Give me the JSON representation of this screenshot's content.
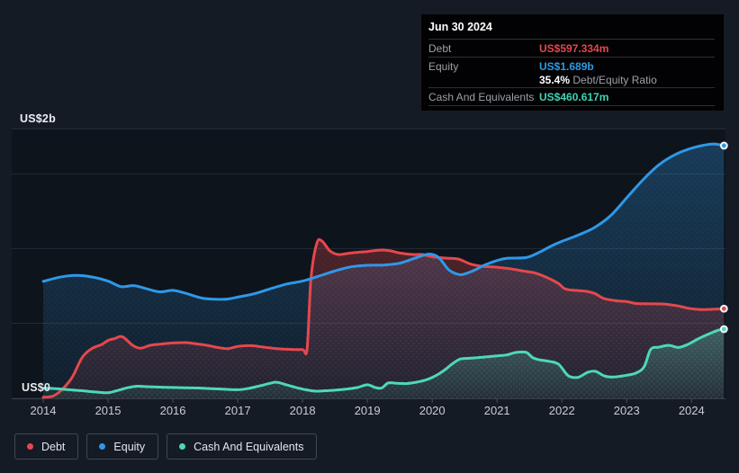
{
  "tooltip": {
    "date": "Jun 30 2024",
    "debt_label": "Debt",
    "debt_value": "US$597.334m",
    "equity_label": "Equity",
    "equity_value": "US$1.689b",
    "ratio_value": "35.4%",
    "ratio_label": "Debt/Equity Ratio",
    "cash_label": "Cash And Equivalents",
    "cash_value": "US$460.617m"
  },
  "y_axis": {
    "top_label": "US$2b",
    "zero_label": "US$0"
  },
  "x_axis": {
    "years": [
      "2014",
      "2015",
      "2016",
      "2017",
      "2018",
      "2019",
      "2020",
      "2021",
      "2022",
      "2023",
      "2024"
    ]
  },
  "legend": [
    {
      "label": "Debt",
      "color": "#e5484d"
    },
    {
      "label": "Equity",
      "color": "#2f98e8"
    },
    {
      "label": "Cash And Equivalents",
      "color": "#4ed8b8"
    }
  ],
  "colors": {
    "page_bg": "#151b25",
    "plot_bg": "#0e141c",
    "grid": "#232a34",
    "grid_top": "#2b323d",
    "axis": "#3d4550",
    "tick": "#4b535e",
    "year_text": "#c9cdd3",
    "debt": "#e5484d",
    "equity": "#2f98e8",
    "cash": "#4ed8b8"
  },
  "chart_data": {
    "type": "area",
    "x_unit": "year",
    "x_range": [
      2014,
      2024.5
    ],
    "y_label": "US$ billions",
    "y_range": [
      0,
      2
    ],
    "y_gridlines": [
      0.5,
      1.0,
      1.5
    ],
    "grid": "on",
    "legend_position": "bottom-left",
    "last_point_date": "Jun 30 2024",
    "series": [
      {
        "name": "Debt",
        "color": "#e5484d",
        "unit": "USD billions",
        "points": [
          [
            2014.0,
            0.005
          ],
          [
            2014.15,
            0.012
          ],
          [
            2014.3,
            0.06
          ],
          [
            2014.45,
            0.14
          ],
          [
            2014.6,
            0.27
          ],
          [
            2014.75,
            0.33
          ],
          [
            2014.9,
            0.357
          ],
          [
            2015.0,
            0.385
          ],
          [
            2015.1,
            0.397
          ],
          [
            2015.22,
            0.41
          ],
          [
            2015.38,
            0.352
          ],
          [
            2015.5,
            0.333
          ],
          [
            2015.65,
            0.352
          ],
          [
            2015.8,
            0.36
          ],
          [
            2016.0,
            0.368
          ],
          [
            2016.2,
            0.37
          ],
          [
            2016.4,
            0.36
          ],
          [
            2016.55,
            0.35
          ],
          [
            2016.7,
            0.337
          ],
          [
            2016.85,
            0.33
          ],
          [
            2017.0,
            0.345
          ],
          [
            2017.2,
            0.35
          ],
          [
            2017.4,
            0.34
          ],
          [
            2017.6,
            0.33
          ],
          [
            2017.8,
            0.325
          ],
          [
            2018.0,
            0.324
          ],
          [
            2018.07,
            0.33
          ],
          [
            2018.13,
            0.8
          ],
          [
            2018.22,
            1.035
          ],
          [
            2018.3,
            1.05
          ],
          [
            2018.42,
            0.985
          ],
          [
            2018.55,
            0.96
          ],
          [
            2018.7,
            0.968
          ],
          [
            2018.85,
            0.975
          ],
          [
            2019.0,
            0.98
          ],
          [
            2019.2,
            0.99
          ],
          [
            2019.35,
            0.985
          ],
          [
            2019.5,
            0.97
          ],
          [
            2019.7,
            0.96
          ],
          [
            2019.85,
            0.96
          ],
          [
            2020.0,
            0.945
          ],
          [
            2020.2,
            0.936
          ],
          [
            2020.4,
            0.93
          ],
          [
            2020.6,
            0.895
          ],
          [
            2020.8,
            0.88
          ],
          [
            2021.0,
            0.875
          ],
          [
            2021.2,
            0.865
          ],
          [
            2021.4,
            0.85
          ],
          [
            2021.6,
            0.835
          ],
          [
            2021.8,
            0.8
          ],
          [
            2021.95,
            0.765
          ],
          [
            2022.05,
            0.73
          ],
          [
            2022.2,
            0.72
          ],
          [
            2022.35,
            0.715
          ],
          [
            2022.5,
            0.7
          ],
          [
            2022.65,
            0.665
          ],
          [
            2022.85,
            0.65
          ],
          [
            2023.0,
            0.645
          ],
          [
            2023.15,
            0.632
          ],
          [
            2023.4,
            0.63
          ],
          [
            2023.6,
            0.628
          ],
          [
            2023.8,
            0.615
          ],
          [
            2023.95,
            0.6
          ],
          [
            2024.15,
            0.592
          ],
          [
            2024.35,
            0.594
          ],
          [
            2024.5,
            0.597334
          ]
        ]
      },
      {
        "name": "Equity",
        "color": "#2f98e8",
        "unit": "USD billions",
        "points": [
          [
            2014.0,
            0.78
          ],
          [
            2014.25,
            0.808
          ],
          [
            2014.5,
            0.82
          ],
          [
            2014.75,
            0.81
          ],
          [
            2015.0,
            0.782
          ],
          [
            2015.2,
            0.745
          ],
          [
            2015.4,
            0.752
          ],
          [
            2015.6,
            0.73
          ],
          [
            2015.8,
            0.71
          ],
          [
            2016.0,
            0.72
          ],
          [
            2016.2,
            0.7
          ],
          [
            2016.45,
            0.668
          ],
          [
            2016.7,
            0.66
          ],
          [
            2016.85,
            0.662
          ],
          [
            2017.0,
            0.675
          ],
          [
            2017.25,
            0.697
          ],
          [
            2017.5,
            0.73
          ],
          [
            2017.75,
            0.762
          ],
          [
            2018.0,
            0.782
          ],
          [
            2018.25,
            0.815
          ],
          [
            2018.5,
            0.85
          ],
          [
            2018.75,
            0.878
          ],
          [
            2019.0,
            0.888
          ],
          [
            2019.25,
            0.89
          ],
          [
            2019.5,
            0.902
          ],
          [
            2019.75,
            0.938
          ],
          [
            2019.95,
            0.963
          ],
          [
            2020.1,
            0.94
          ],
          [
            2020.25,
            0.86
          ],
          [
            2020.4,
            0.827
          ],
          [
            2020.5,
            0.83
          ],
          [
            2020.65,
            0.855
          ],
          [
            2020.8,
            0.888
          ],
          [
            2021.0,
            0.92
          ],
          [
            2021.15,
            0.935
          ],
          [
            2021.45,
            0.94
          ],
          [
            2021.65,
            0.975
          ],
          [
            2021.85,
            1.02
          ],
          [
            2022.0,
            1.048
          ],
          [
            2022.25,
            1.09
          ],
          [
            2022.5,
            1.14
          ],
          [
            2022.75,
            1.22
          ],
          [
            2023.0,
            1.34
          ],
          [
            2023.25,
            1.46
          ],
          [
            2023.5,
            1.562
          ],
          [
            2023.75,
            1.63
          ],
          [
            2024.0,
            1.672
          ],
          [
            2024.2,
            1.693
          ],
          [
            2024.35,
            1.7
          ],
          [
            2024.5,
            1.689
          ]
        ]
      },
      {
        "name": "Cash And Equivalents",
        "color": "#4ed8b8",
        "unit": "USD billions",
        "points": [
          [
            2014.0,
            0.065
          ],
          [
            2014.2,
            0.062
          ],
          [
            2014.4,
            0.055
          ],
          [
            2014.6,
            0.048
          ],
          [
            2014.8,
            0.04
          ],
          [
            2015.0,
            0.035
          ],
          [
            2015.15,
            0.05
          ],
          [
            2015.3,
            0.068
          ],
          [
            2015.45,
            0.078
          ],
          [
            2015.6,
            0.075
          ],
          [
            2015.8,
            0.072
          ],
          [
            2016.0,
            0.07
          ],
          [
            2016.2,
            0.068
          ],
          [
            2016.4,
            0.066
          ],
          [
            2016.6,
            0.062
          ],
          [
            2016.8,
            0.058
          ],
          [
            2017.0,
            0.055
          ],
          [
            2017.15,
            0.062
          ],
          [
            2017.35,
            0.082
          ],
          [
            2017.5,
            0.098
          ],
          [
            2017.6,
            0.105
          ],
          [
            2017.75,
            0.088
          ],
          [
            2017.9,
            0.07
          ],
          [
            2018.05,
            0.055
          ],
          [
            2018.2,
            0.045
          ],
          [
            2018.35,
            0.048
          ],
          [
            2018.5,
            0.052
          ],
          [
            2018.7,
            0.06
          ],
          [
            2018.85,
            0.07
          ],
          [
            2019.0,
            0.088
          ],
          [
            2019.12,
            0.07
          ],
          [
            2019.22,
            0.066
          ],
          [
            2019.32,
            0.1
          ],
          [
            2019.45,
            0.098
          ],
          [
            2019.6,
            0.096
          ],
          [
            2019.75,
            0.105
          ],
          [
            2019.9,
            0.12
          ],
          [
            2020.05,
            0.148
          ],
          [
            2020.2,
            0.19
          ],
          [
            2020.3,
            0.225
          ],
          [
            2020.42,
            0.258
          ],
          [
            2020.55,
            0.265
          ],
          [
            2020.7,
            0.27
          ],
          [
            2020.85,
            0.275
          ],
          [
            2021.0,
            0.282
          ],
          [
            2021.15,
            0.288
          ],
          [
            2021.3,
            0.305
          ],
          [
            2021.45,
            0.305
          ],
          [
            2021.55,
            0.27
          ],
          [
            2021.65,
            0.255
          ],
          [
            2021.8,
            0.245
          ],
          [
            2021.95,
            0.225
          ],
          [
            2022.1,
            0.148
          ],
          [
            2022.25,
            0.138
          ],
          [
            2022.4,
            0.172
          ],
          [
            2022.52,
            0.178
          ],
          [
            2022.65,
            0.148
          ],
          [
            2022.8,
            0.14
          ],
          [
            2023.0,
            0.152
          ],
          [
            2023.15,
            0.168
          ],
          [
            2023.27,
            0.21
          ],
          [
            2023.37,
            0.325
          ],
          [
            2023.5,
            0.34
          ],
          [
            2023.65,
            0.352
          ],
          [
            2023.8,
            0.338
          ],
          [
            2023.95,
            0.36
          ],
          [
            2024.1,
            0.395
          ],
          [
            2024.25,
            0.425
          ],
          [
            2024.4,
            0.452
          ],
          [
            2024.5,
            0.460617
          ]
        ]
      }
    ]
  }
}
